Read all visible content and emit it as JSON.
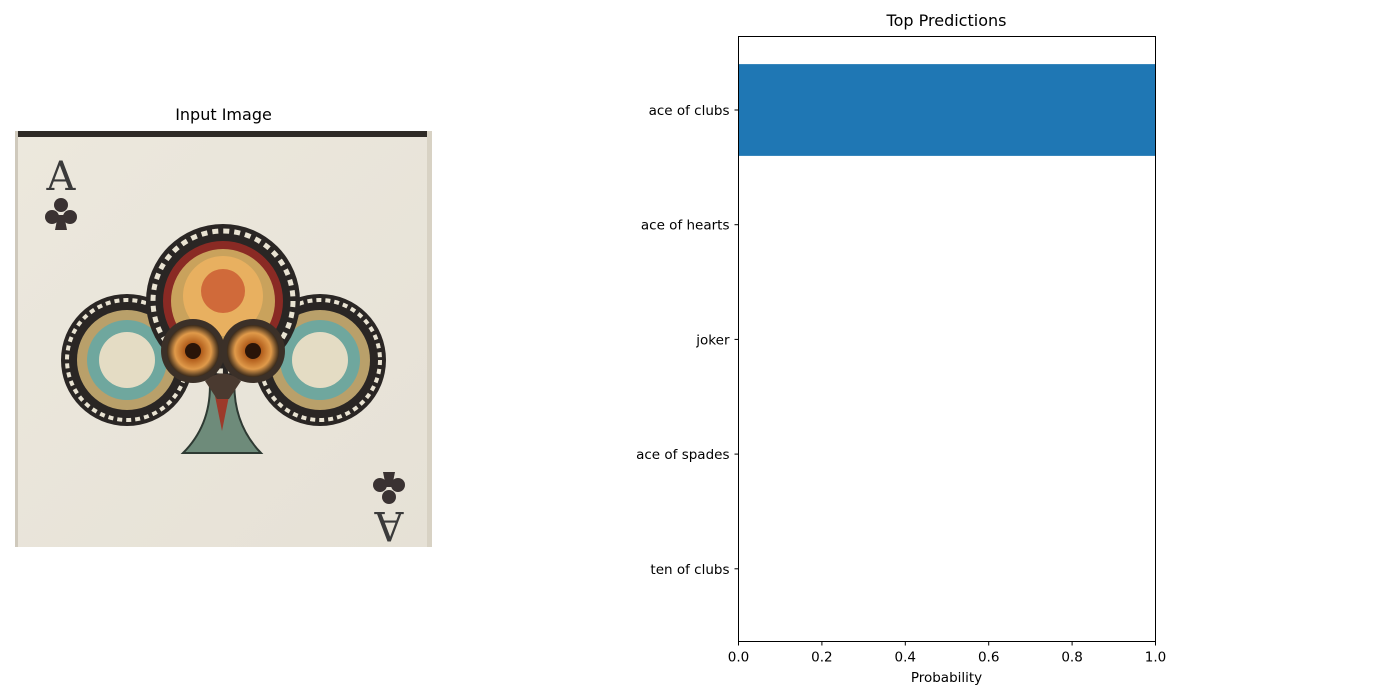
{
  "input_panel": {
    "title": "Input Image",
    "card": {
      "rank": "A",
      "suit_icon": "club-icon"
    }
  },
  "chart_data": {
    "type": "bar",
    "orientation": "horizontal",
    "title": "Top Predictions",
    "xlabel": "Probability",
    "ylabel": "",
    "categories": [
      "ace of clubs",
      "ace of hearts",
      "joker",
      "ace of spades",
      "ten of clubs"
    ],
    "values": [
      1.0,
      0.0,
      0.0,
      0.0,
      0.0
    ],
    "xlim": [
      0,
      1.0
    ],
    "xticks": [
      "0.0",
      "0.2",
      "0.4",
      "0.6",
      "0.8",
      "1.0"
    ],
    "bar_color": "#1f77b4",
    "grid": false,
    "legend": false
  }
}
